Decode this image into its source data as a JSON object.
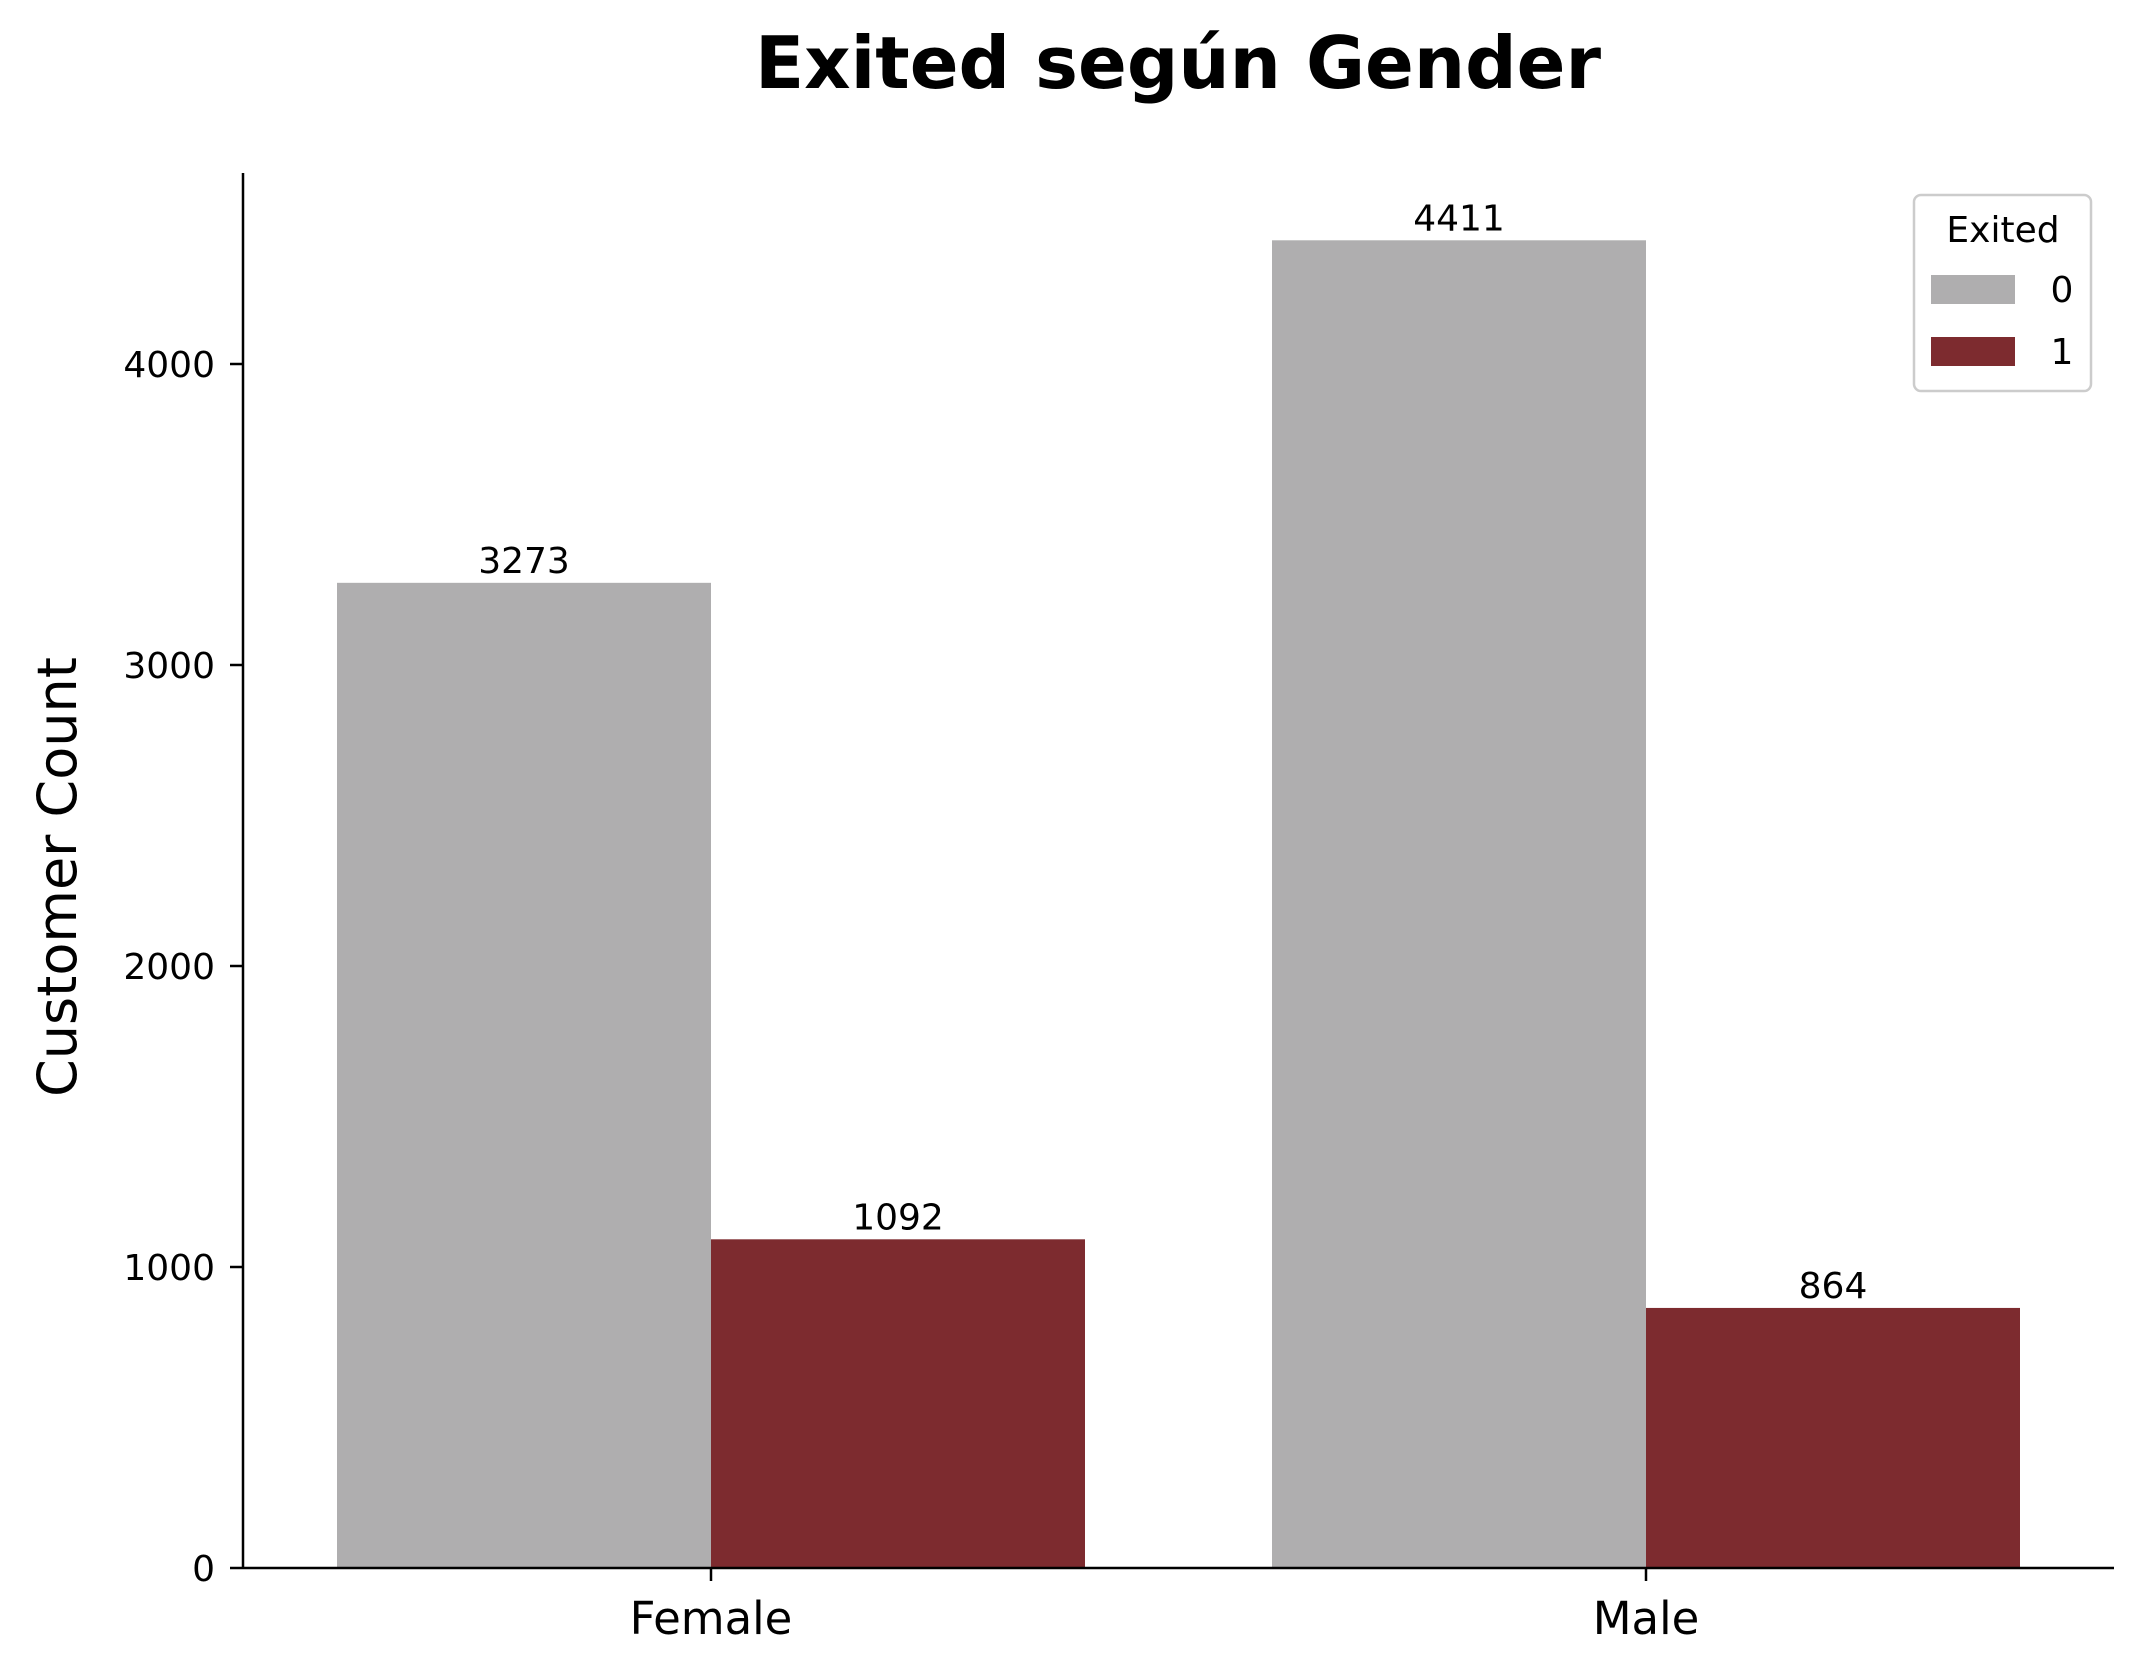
{
  "chart_data": {
    "type": "bar",
    "title": "Exited según Gender",
    "xlabel": "",
    "ylabel": "Customer Count",
    "categories": [
      "Female",
      "Male"
    ],
    "series": [
      {
        "name": "0",
        "values": [
          3273,
          4411
        ],
        "color": "#afaeaf"
      },
      {
        "name": "1",
        "values": [
          1092,
          864
        ],
        "color": "#7d2b2f"
      }
    ],
    "ylim": [
      0,
      4638
    ],
    "yticks": [
      0,
      1000,
      2000,
      3000,
      4000
    ],
    "legend": {
      "title": "Exited",
      "placement": "top-right"
    },
    "grid": false
  }
}
